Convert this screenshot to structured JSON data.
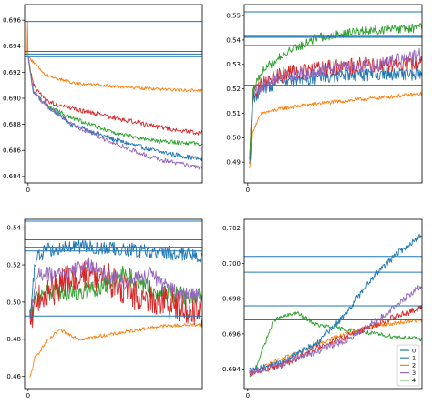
{
  "colors": {
    "series": [
      "#1f77b4",
      "#3a7ebf",
      "#ff7f0e",
      "#d62728",
      "#9467bd",
      "#2ca02c"
    ],
    "hline": "#1f77b4"
  },
  "legend": {
    "placement": "lower-right",
    "entries": [
      {
        "label": "0",
        "color": "#1f77b4"
      },
      {
        "label": "1",
        "color": "#3a7ebf"
      },
      {
        "label": "2",
        "color": "#ff7f0e"
      },
      {
        "label": "3",
        "color": "#9467bd"
      },
      {
        "label": "4",
        "color": "#2ca02c"
      }
    ]
  },
  "chart_data": [
    {
      "type": "line",
      "title": "",
      "xlabel": "",
      "ylabel": "",
      "x_ticks": [
        {
          "value": 0,
          "label": "0"
        }
      ],
      "xlim": [
        -2,
        100
      ],
      "ylim": [
        0.6835,
        0.6972
      ],
      "y_ticks": [
        {
          "value": 0.684,
          "label": "0.684"
        },
        {
          "value": 0.686,
          "label": "0.686"
        },
        {
          "value": 0.688,
          "label": "0.688"
        },
        {
          "value": 0.69,
          "label": "0.690"
        },
        {
          "value": 0.692,
          "label": "0.692"
        },
        {
          "value": 0.694,
          "label": "0.694"
        },
        {
          "value": 0.696,
          "label": "0.696"
        }
      ],
      "hlines": [
        0.6959,
        0.6936,
        0.6934,
        0.6932
      ],
      "series": [
        {
          "color": "#1f77b4",
          "noise": 0.00018,
          "points": [
            [
              0,
              0.6932
            ],
            [
              3,
              0.6905
            ],
            [
              10,
              0.6895
            ],
            [
              25,
              0.688
            ],
            [
              50,
              0.6868
            ],
            [
              75,
              0.6859
            ],
            [
              100,
              0.6853
            ]
          ]
        },
        {
          "color": "#ff7f0e",
          "noise": 0.00012,
          "points": [
            [
              0,
              0.6932
            ],
            [
              5,
              0.6925
            ],
            [
              10,
              0.6918
            ],
            [
              25,
              0.6912
            ],
            [
              50,
              0.6909
            ],
            [
              75,
              0.6907
            ],
            [
              100,
              0.6906
            ]
          ]
        },
        {
          "color": "#d62728",
          "noise": 0.00018,
          "points": [
            [
              0,
              0.6932
            ],
            [
              3,
              0.691
            ],
            [
              10,
              0.6898
            ],
            [
              25,
              0.6892
            ],
            [
              50,
              0.6885
            ],
            [
              75,
              0.6878
            ],
            [
              100,
              0.6873
            ]
          ]
        },
        {
          "color": "#2ca02c",
          "noise": 0.00015,
          "points": [
            [
              0,
              0.6932
            ],
            [
              3,
              0.6905
            ],
            [
              10,
              0.6895
            ],
            [
              25,
              0.6885
            ],
            [
              50,
              0.6873
            ],
            [
              75,
              0.6867
            ],
            [
              100,
              0.6865
            ]
          ]
        },
        {
          "color": "#9467bd",
          "noise": 0.00018,
          "points": [
            [
              0,
              0.6932
            ],
            [
              3,
              0.6905
            ],
            [
              10,
              0.6895
            ],
            [
              25,
              0.688
            ],
            [
              50,
              0.6865
            ],
            [
              75,
              0.6853
            ],
            [
              100,
              0.6846
            ]
          ]
        },
        {
          "color": "#ff7f0e",
          "noise": 0,
          "points": [
            [
              -0.6,
              0.6933
            ],
            [
              -0.3,
              0.6959
            ],
            [
              0,
              0.6932
            ]
          ]
        }
      ]
    },
    {
      "type": "line",
      "title": "",
      "xlabel": "",
      "ylabel": "",
      "x_ticks": [
        {
          "value": 0,
          "label": "0"
        }
      ],
      "xlim": [
        -2,
        100
      ],
      "ylim": [
        0.4815,
        0.5545
      ],
      "y_ticks": [
        {
          "value": 0.49,
          "label": "0.49"
        },
        {
          "value": 0.5,
          "label": "0.50"
        },
        {
          "value": 0.51,
          "label": "0.51"
        },
        {
          "value": 0.52,
          "label": "0.52"
        },
        {
          "value": 0.53,
          "label": "0.53"
        },
        {
          "value": 0.54,
          "label": "0.54"
        },
        {
          "value": 0.55,
          "label": "0.55"
        }
      ],
      "hlines": [
        0.5515,
        0.5415,
        0.5411,
        0.5378,
        0.5215
      ],
      "series": [
        {
          "color": "#ff7f0e",
          "noise": 0.0008,
          "points": [
            [
              1,
              0.487
            ],
            [
              3,
              0.503
            ],
            [
              8,
              0.51
            ],
            [
              20,
              0.512
            ],
            [
              40,
              0.514
            ],
            [
              70,
              0.516
            ],
            [
              100,
              0.518
            ]
          ]
        },
        {
          "color": "#1f77b4",
          "noise": 0.0026,
          "points": [
            [
              1,
              0.488
            ],
            [
              3,
              0.515
            ],
            [
              8,
              0.52
            ],
            [
              20,
              0.523
            ],
            [
              50,
              0.525
            ],
            [
              75,
              0.526
            ],
            [
              100,
              0.526
            ]
          ]
        },
        {
          "color": "#d62728",
          "noise": 0.0032,
          "points": [
            [
              1,
              0.49
            ],
            [
              3,
              0.518
            ],
            [
              8,
              0.522
            ],
            [
              20,
              0.526
            ],
            [
              50,
              0.529
            ],
            [
              75,
              0.53
            ],
            [
              100,
              0.531
            ]
          ]
        },
        {
          "color": "#9467bd",
          "noise": 0.0028,
          "points": [
            [
              1,
              0.49
            ],
            [
              3,
              0.518
            ],
            [
              8,
              0.521
            ],
            [
              20,
              0.525
            ],
            [
              50,
              0.528
            ],
            [
              75,
              0.53
            ],
            [
              100,
              0.534
            ]
          ]
        },
        {
          "color": "#2ca02c",
          "noise": 0.0018,
          "points": [
            [
              1,
              0.49
            ],
            [
              3,
              0.52
            ],
            [
              8,
              0.527
            ],
            [
              20,
              0.534
            ],
            [
              40,
              0.541
            ],
            [
              70,
              0.544
            ],
            [
              100,
              0.545
            ]
          ]
        }
      ]
    },
    {
      "type": "line",
      "title": "",
      "xlabel": "",
      "ylabel": "",
      "x_ticks": [
        {
          "value": 0,
          "label": "0"
        }
      ],
      "xlim": [
        -2,
        100
      ],
      "ylim": [
        0.4535,
        0.5445
      ],
      "y_ticks": [
        {
          "value": 0.46,
          "label": "0.46"
        },
        {
          "value": 0.48,
          "label": "0.48"
        },
        {
          "value": 0.5,
          "label": "0.50"
        },
        {
          "value": 0.52,
          "label": "0.52"
        },
        {
          "value": 0.54,
          "label": "0.54"
        }
      ],
      "hlines": [
        0.5435,
        0.5335,
        0.5295,
        0.5275,
        0.4925
      ],
      "series": [
        {
          "color": "#ff7f0e",
          "noise": 0.0009,
          "points": [
            [
              1,
              0.459
            ],
            [
              4,
              0.47
            ],
            [
              10,
              0.478
            ],
            [
              18,
              0.485
            ],
            [
              30,
              0.48
            ],
            [
              50,
              0.483
            ],
            [
              75,
              0.487
            ],
            [
              100,
              0.488
            ]
          ]
        },
        {
          "color": "#2ca02c",
          "noise": 0.005,
          "points": [
            [
              1,
              0.49
            ],
            [
              5,
              0.505
            ],
            [
              20,
              0.505
            ],
            [
              40,
              0.507
            ],
            [
              55,
              0.515
            ],
            [
              75,
              0.505
            ],
            [
              100,
              0.503
            ]
          ]
        },
        {
          "color": "#1f77b4",
          "noise": 0.0038,
          "points": [
            [
              1,
              0.49
            ],
            [
              4,
              0.522
            ],
            [
              10,
              0.528
            ],
            [
              30,
              0.53
            ],
            [
              60,
              0.528
            ],
            [
              100,
              0.525
            ]
          ]
        },
        {
          "color": "#d62728",
          "noise": 0.009,
          "points": [
            [
              1,
              0.49
            ],
            [
              5,
              0.5
            ],
            [
              20,
              0.51
            ],
            [
              40,
              0.515
            ],
            [
              60,
              0.505
            ],
            [
              80,
              0.5
            ],
            [
              100,
              0.495
            ]
          ]
        },
        {
          "color": "#9467bd",
          "noise": 0.004,
          "points": [
            [
              1,
              0.49
            ],
            [
              5,
              0.515
            ],
            [
              20,
              0.515
            ],
            [
              35,
              0.52
            ],
            [
              55,
              0.51
            ],
            [
              70,
              0.515
            ],
            [
              85,
              0.505
            ],
            [
              100,
              0.503
            ]
          ]
        }
      ]
    },
    {
      "type": "line",
      "title": "",
      "xlabel": "",
      "ylabel": "",
      "x_ticks": [
        {
          "value": 0,
          "label": "0"
        }
      ],
      "xlim": [
        -2,
        100
      ],
      "ylim": [
        0.6929,
        0.7025
      ],
      "y_ticks": [
        {
          "value": 0.694,
          "label": "0.694"
        },
        {
          "value": 0.696,
          "label": "0.696"
        },
        {
          "value": 0.698,
          "label": "0.698"
        },
        {
          "value": 0.7,
          "label": "0.700"
        },
        {
          "value": 0.702,
          "label": "0.702"
        }
      ],
      "hlines": [
        0.7004,
        0.6995,
        0.6976,
        0.6968
      ],
      "series": [
        {
          "color": "#2ca02c",
          "noise": 0.00012,
          "points": [
            [
              1,
              0.6935
            ],
            [
              5,
              0.6942
            ],
            [
              15,
              0.6968
            ],
            [
              28,
              0.6972
            ],
            [
              40,
              0.6965
            ],
            [
              60,
              0.6962
            ],
            [
              80,
              0.6959
            ],
            [
              100,
              0.6957
            ]
          ]
        },
        {
          "color": "#ff7f0e",
          "noise": 0.00012,
          "points": [
            [
              1,
              0.6937
            ],
            [
              10,
              0.6942
            ],
            [
              25,
              0.6948
            ],
            [
              50,
              0.6958
            ],
            [
              75,
              0.6965
            ],
            [
              100,
              0.6968
            ]
          ]
        },
        {
          "color": "#1f77b4",
          "noise": 0.00018,
          "points": [
            [
              1,
              0.6939
            ],
            [
              20,
              0.6944
            ],
            [
              40,
              0.6955
            ],
            [
              55,
              0.697
            ],
            [
              70,
              0.699
            ],
            [
              85,
              0.7005
            ],
            [
              100,
              0.7016
            ]
          ]
        },
        {
          "color": "#d62728",
          "noise": 0.00018,
          "points": [
            [
              1,
              0.6938
            ],
            [
              20,
              0.6942
            ],
            [
              40,
              0.6952
            ],
            [
              60,
              0.696
            ],
            [
              80,
              0.6968
            ],
            [
              100,
              0.6975
            ]
          ]
        },
        {
          "color": "#9467bd",
          "noise": 0.00018,
          "points": [
            [
              1,
              0.6938
            ],
            [
              20,
              0.6943
            ],
            [
              40,
              0.695
            ],
            [
              60,
              0.6958
            ],
            [
              80,
              0.6972
            ],
            [
              100,
              0.6988
            ]
          ]
        }
      ]
    }
  ]
}
